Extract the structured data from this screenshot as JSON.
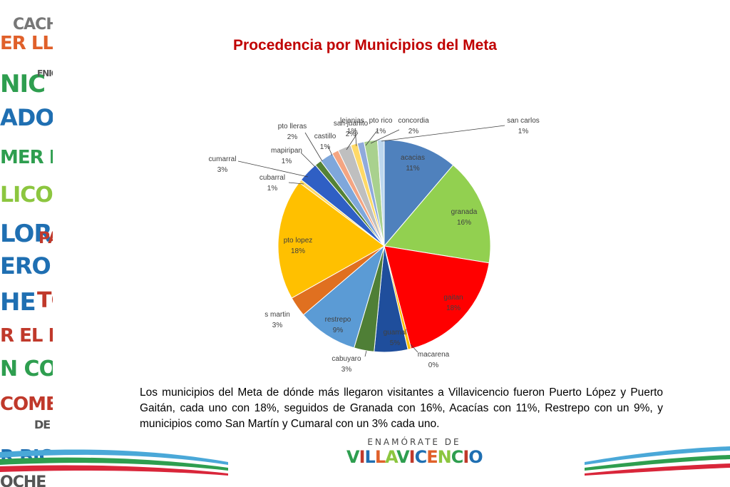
{
  "title": "Procedencia por Municipios del Meta",
  "caption": "Los municipios del Meta de dónde más llegaron visitantes a Villavicencio fueron Puerto López y Puerto Gaitán, cada uno con 18%, seguidos de Granada con 16%, Acacías con 11%, Restrepo con un 9%, y municipios como San Martín y Cumaral con un 3% cada uno.",
  "logo": {
    "tagline": "ENAMÓRATE DE",
    "name": "VILLAVICENCIO"
  },
  "side_words": [
    "CACHA",
    "ER LLAN",
    "NIC",
    "FNIOS",
    "ADORE",
    "MER EL F",
    "LICON",
    "LOR",
    "PA",
    "ERO",
    "HE",
    "TC",
    "R EL PARÇ",
    "N CON",
    "COMER",
    "DE",
    "R BICIC",
    "OCHE"
  ],
  "colors": {
    "title": "#c00000",
    "text": "#000000",
    "label": "#404040"
  },
  "chart_data": {
    "type": "pie",
    "title": "Procedencia por Municipios del Meta",
    "slices": [
      {
        "label": "acacias",
        "pct": "11%",
        "color": "#4f81bd"
      },
      {
        "label": "granada",
        "pct": "16%",
        "color": "#92d050"
      },
      {
        "label": "gaitan",
        "pct": "18%",
        "color": "#ff0000"
      },
      {
        "label": "macarena",
        "pct": "0%",
        "color": "#ffc000"
      },
      {
        "label": "guamal",
        "pct": "5%",
        "color": "#1f4e9c"
      },
      {
        "label": "cabuyaro",
        "pct": "3%",
        "color": "#4f7f36"
      },
      {
        "label": "restrepo",
        "pct": "9%",
        "color": "#5b9bd5"
      },
      {
        "label": "s martin",
        "pct": "3%",
        "color": "#e07020"
      },
      {
        "label": "pto lopez",
        "pct": "18%",
        "color": "#ffc000"
      },
      {
        "label": "cubarral",
        "pct": "1%",
        "color": "#ffd966"
      },
      {
        "label": "cumarral",
        "pct": "3%",
        "color": "#2f5fc4"
      },
      {
        "label": "mapiripan",
        "pct": "1%",
        "color": "#548235"
      },
      {
        "label": "pto lleras",
        "pct": "2%",
        "color": "#7fa7db"
      },
      {
        "label": "castillo",
        "pct": "1%",
        "color": "#f4a582"
      },
      {
        "label": "san juanito",
        "pct": "2%",
        "color": "#bfbfbf"
      },
      {
        "label": "lejanias",
        "pct": "1%",
        "color": "#ffd966"
      },
      {
        "label": "pto rico",
        "pct": "1%",
        "color": "#8faadc"
      },
      {
        "label": "concordia",
        "pct": "2%",
        "color": "#a9d18e"
      },
      {
        "label": "san carlos",
        "pct": "1%",
        "color": "#bdd7ee"
      }
    ]
  }
}
